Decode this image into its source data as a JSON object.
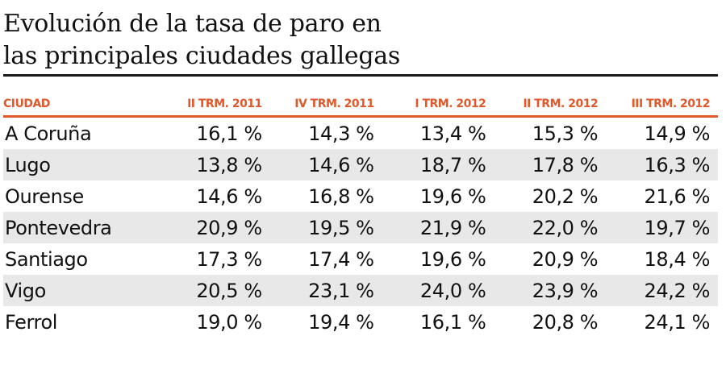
{
  "title_line1": "Evolución de la tasa de paro en",
  "title_line2": "las principales ciudades gallegas",
  "colors": {
    "accent": "#e1582a",
    "row_shade": "#e8e8e8",
    "text": "#111111"
  },
  "chart_data": {
    "type": "table",
    "title": "Evolución de la tasa de paro en las principales ciudades gallegas",
    "columns": [
      "CIUDAD",
      "II TRM. 2011",
      "IV TRM. 2011",
      "I TRM. 2012",
      "II TRM. 2012",
      "III TRM. 2012"
    ],
    "rows": [
      [
        "A Coruña",
        "16,1 %",
        "14,3 %",
        "13,4 %",
        "15,3 %",
        "14,9 %"
      ],
      [
        "Lugo",
        "13,8 %",
        "14,6 %",
        "18,7 %",
        "17,8 %",
        "16,3 %"
      ],
      [
        "Ourense",
        "14,6 %",
        "16,8 %",
        "19,6 %",
        "20,2 %",
        "21,6 %"
      ],
      [
        "Pontevedra",
        "20,9 %",
        "19,5 %",
        "21,9 %",
        "22,0 %",
        "19,7 %"
      ],
      [
        "Santiago",
        "17,3 %",
        "17,4 %",
        "19,6 %",
        "20,9 %",
        "18,4 %"
      ],
      [
        "Vigo",
        "20,5 %",
        "23,1 %",
        "24,0 %",
        "23,9 %",
        "24,2 %"
      ],
      [
        "Ferrol",
        "19,0 %",
        "19,4 %",
        "16,1 %",
        "20,8 %",
        "24,1 %"
      ]
    ]
  }
}
